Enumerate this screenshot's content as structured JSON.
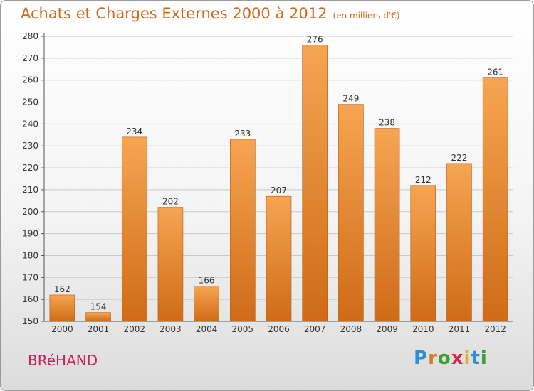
{
  "title": "Achats et Charges Externes 2000 à 2012",
  "subtitle": "(en milliers d'€)",
  "place": "BRéHAND",
  "logo": {
    "text": "Proxiti",
    "letter_colors": [
      "#2a8fd8",
      "#e07a20",
      "#3aa030",
      "#e02050",
      "#e0b020",
      "#2a8fd8",
      "#3aa030"
    ]
  },
  "colors": {
    "bar_light": "#f6a552",
    "bar_dark": "#cf6b17",
    "bar_edge": "#b85c10",
    "grid": "#c8c8c8",
    "axis": "#555555",
    "text": "#333333"
  },
  "chart_data": {
    "type": "bar",
    "categories": [
      "2000",
      "2001",
      "2002",
      "2003",
      "2004",
      "2005",
      "2006",
      "2007",
      "2008",
      "2009",
      "2010",
      "2011",
      "2012"
    ],
    "values": [
      162,
      154,
      234,
      202,
      166,
      233,
      207,
      276,
      249,
      238,
      212,
      222,
      261
    ],
    "ylim": [
      150,
      280
    ],
    "yticks": [
      150,
      160,
      170,
      180,
      190,
      200,
      210,
      220,
      230,
      240,
      250,
      260,
      270,
      280
    ],
    "grid": true
  }
}
